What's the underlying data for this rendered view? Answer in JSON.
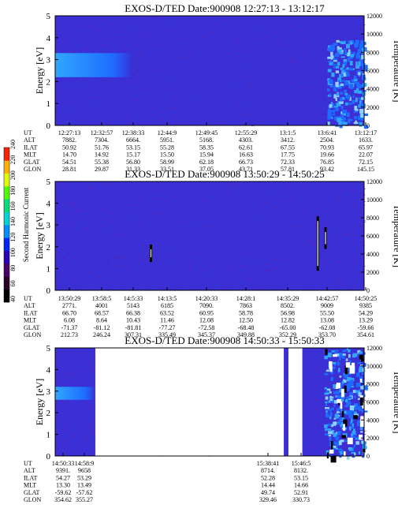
{
  "colors": {
    "background": "#3a30d6",
    "speckle": "#5a1fb0",
    "band": "#1e6cff",
    "band_bright": "#31a6ff",
    "hot": "#ffffff",
    "dark": "#000000"
  },
  "colorbar": {
    "label": "Second Harmonic Current",
    "ticks": [
      "40",
      "60",
      "80",
      "100",
      "120",
      "140",
      "160",
      "180",
      "200",
      "220",
      "240"
    ],
    "colors": [
      "#000000",
      "#2a0028",
      "#4a0068",
      "#2a00b8",
      "#0026ff",
      "#0090ff",
      "#00d6d6",
      "#00e07a",
      "#52ff00",
      "#e0ff00",
      "#ffb000",
      "#ff2000"
    ]
  },
  "chart_data": [
    {
      "type": "heatmap",
      "title": "EXOS-D/TED   Date:900908   12:27:13 - 13:12:17",
      "ylabel": "Energy [eV]",
      "y2label": "Temperature [K]",
      "ylim": [
        0,
        5
      ],
      "y2lim": [
        0,
        12000
      ],
      "yticks": [
        "0",
        "1",
        "2",
        "3",
        "4",
        "5"
      ],
      "y2ticks": [
        "0",
        "2000",
        "4000",
        "6000",
        "8000",
        "10000",
        "12000"
      ],
      "time_ticks": [
        "12:27:13",
        "12:32:57",
        "12:38:33",
        "12:44:9",
        "12:49:45",
        "12:55:29",
        "13:1:5",
        "13:6:41",
        "13:12:17"
      ],
      "band": {
        "x_range": [
          0.0,
          0.25
        ],
        "energy_range": [
          2.2,
          3.3
        ]
      },
      "right_patch": {
        "x_range": [
          0.88,
          1.0
        ],
        "energy_range": [
          0.0,
          3.9
        ]
      },
      "dropouts": [],
      "spikes": [],
      "orbit_rows": [
        {
          "label": "UT",
          "values": [
            "12:27:13",
            "12:32:57",
            "12:38:33",
            "12:44:9",
            "12:49:45",
            "12:55:29",
            "13:1:5",
            "13:6:41",
            "13:12:17"
          ]
        },
        {
          "label": "ALT",
          "values": [
            "7882.",
            "7304.",
            "6664.",
            "5951.",
            "5168.",
            "4303.",
            "3412.",
            "2504.",
            "1633."
          ]
        },
        {
          "label": "ILAT",
          "values": [
            "50.92",
            "51.76",
            "53.15",
            "55.28",
            "58.35",
            "62.61",
            "67.55",
            "70.93",
            "65.97"
          ]
        },
        {
          "label": "MLT",
          "values": [
            "14.70",
            "14.92",
            "15.17",
            "15.50",
            "15.94",
            "16.63",
            "17.75",
            "19.66",
            "22.07"
          ]
        },
        {
          "label": "GLAT",
          "values": [
            "54.51",
            "55.38",
            "56.80",
            "58.99",
            "62.18",
            "66.73",
            "72.33",
            "76.85",
            "72.15"
          ]
        },
        {
          "label": "GLON",
          "values": [
            "28.81",
            "29.87",
            "31.33",
            "33.51",
            "37.05",
            "43.71",
            "57.81",
            "93.42",
            "145.15"
          ]
        }
      ]
    },
    {
      "type": "heatmap",
      "title": "EXOS-D/TED   Date:900908   13:50:29 - 14:50:25",
      "ylabel": "Energy [eV]",
      "y2label": "Temperature [K]",
      "ylim": [
        0,
        5
      ],
      "y2lim": [
        0,
        12000
      ],
      "yticks": [
        "0",
        "1",
        "2",
        "3",
        "4",
        "5"
      ],
      "y2ticks": [
        "0",
        "2000",
        "4000",
        "6000",
        "8000",
        "10000",
        "12000"
      ],
      "time_ticks": [
        "13:50:29",
        "13:58:5",
        "14:5:33",
        "14:13:5",
        "14:20:33",
        "14:28:1",
        "14:35:29",
        "14:42:57",
        "14:50:25"
      ],
      "band": null,
      "right_patch": null,
      "dropouts": [],
      "spikes": [
        {
          "x": 0.31,
          "energy_range": [
            1.3,
            2.1
          ]
        },
        {
          "x": 0.85,
          "energy_range": [
            0.9,
            3.4
          ]
        },
        {
          "x": 0.875,
          "energy_range": [
            1.9,
            2.9
          ]
        }
      ],
      "orbit_rows": [
        {
          "label": "UT",
          "values": [
            "13:50:29",
            "13:58:5",
            "14:5:33",
            "14:13:5",
            "14:20:33",
            "14:28:1",
            "14:35:29",
            "14:42:57",
            "14:50:25"
          ]
        },
        {
          "label": "ALT",
          "values": [
            "2771.",
            "4001",
            "5143",
            "6185",
            "7090.",
            "7863",
            "8502.",
            "9009",
            "9385"
          ]
        },
        {
          "label": "ILAT",
          "values": [
            "66.70",
            "68.57",
            "66.38",
            "63.52",
            "60.95",
            "58.78",
            "56.98",
            "55.50",
            "54.29"
          ]
        },
        {
          "label": "MLT",
          "values": [
            "6.08",
            "8.64",
            "10.43",
            "11.46",
            "12.08",
            "12.50",
            "12.82",
            "13.08",
            "13.29"
          ]
        },
        {
          "label": "GLAT",
          "values": [
            "-71.37",
            "-81.12",
            "-81.81",
            "-77.27",
            "-72.58",
            "-68.48",
            "-65.00",
            "-62.08",
            "-59.66"
          ]
        },
        {
          "label": "GLON",
          "values": [
            "212.73",
            "246.24",
            "307.31",
            "335.49",
            "345.37",
            "349.88",
            "352.29",
            "353.70",
            "354.61"
          ]
        }
      ]
    },
    {
      "type": "heatmap",
      "title": "EXOS-D/TED   Date:900908   14:50:33 - 15:50:33",
      "ylabel": "Energy [eV]",
      "y2label": "Temperature [K]",
      "ylim": [
        0,
        5
      ],
      "y2lim": [
        0,
        12000
      ],
      "yticks": [
        "0",
        "1",
        "2",
        "3",
        "4",
        "5"
      ],
      "y2ticks": [
        "0",
        "2000",
        "4000",
        "6000",
        "8000",
        "10000",
        "12000"
      ],
      "time_ticks": [
        "14:50:33",
        "14:58:9",
        "",
        "",
        "",
        "",
        "",
        "15:38:41",
        "15:46:5"
      ],
      "band": {
        "x_range": [
          0.0,
          0.13
        ],
        "energy_range": [
          2.6,
          3.2
        ]
      },
      "right_patch": {
        "x_range": [
          0.87,
          1.0
        ],
        "energy_range": [
          0.0,
          5.0
        ]
      },
      "dropouts": [
        [
          0.13,
          0.74
        ],
        [
          0.755,
          0.8
        ]
      ],
      "spikes": [],
      "orbit_rows": [
        {
          "label": "UT",
          "values": [
            "14:50:33",
            "14:58:9",
            "",
            "",
            "",
            "",
            "",
            "15:38:41",
            "15:46:5"
          ]
        },
        {
          "label": "ALT",
          "values": [
            "9391.",
            "9658",
            "",
            "",
            "",
            "",
            "",
            "8714.",
            "8132."
          ]
        },
        {
          "label": "ILAT",
          "values": [
            "54.27",
            "53.29",
            "",
            "",
            "",
            "",
            "",
            "52.28",
            "53.15"
          ]
        },
        {
          "label": "MLT",
          "values": [
            "13.30",
            "13.49",
            "",
            "",
            "",
            "",
            "",
            "14.44",
            "14.66"
          ]
        },
        {
          "label": "GLAT",
          "values": [
            "-59.62",
            "-57.62",
            "",
            "",
            "",
            "",
            "",
            "49.74",
            "52.91"
          ]
        },
        {
          "label": "GLON",
          "values": [
            "354.62",
            "355.27",
            "",
            "",
            "",
            "",
            "",
            "329.46",
            "330.73"
          ]
        }
      ]
    }
  ]
}
